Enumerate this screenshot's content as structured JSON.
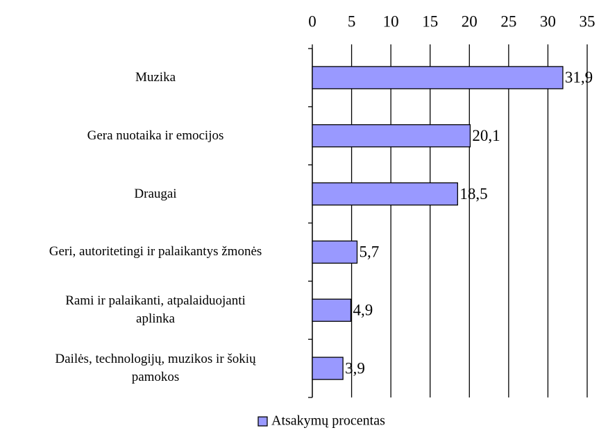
{
  "chart_data": {
    "type": "bar",
    "orientation": "horizontal",
    "categories": [
      "Muzika",
      "Gera nuotaika ir emocijos",
      "Draugai",
      "Geri, autoritetingi ir palaikantys žmonės",
      "Rami ir palaikanti, atpalaiduojanti\naplinka",
      "Dailės, technologijų, muzikos ir šokių\npamokos"
    ],
    "series": [
      {
        "name": "Atsakymų procentas",
        "color": "#9999ff",
        "values": [
          31.9,
          20.1,
          18.5,
          5.7,
          4.9,
          3.9
        ],
        "value_labels": [
          "31,9",
          "20,1",
          "18,5",
          "5,7",
          "4,9",
          "3,9"
        ]
      }
    ],
    "xlim": [
      0,
      35
    ],
    "xticks": [
      0,
      5,
      10,
      15,
      20,
      25,
      30,
      35
    ],
    "grid": true,
    "legend": "bottom"
  }
}
